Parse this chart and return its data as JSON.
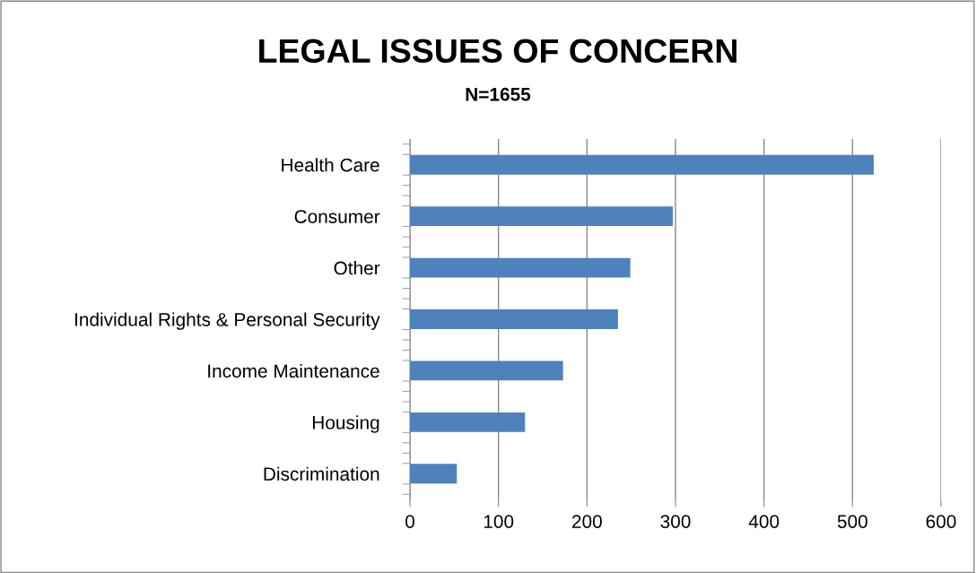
{
  "chart_data": {
    "type": "bar",
    "orientation": "horizontal",
    "title": "LEGAL ISSUES OF CONCERN",
    "subtitle": "N=1655",
    "categories": [
      "Health Care",
      "Consumer",
      "Other",
      "Individual Rights & Personal Security",
      "Income Maintenance",
      "Housing",
      "Discrimination"
    ],
    "values": [
      524,
      297,
      249,
      235,
      173,
      130,
      53
    ],
    "color": "#4f81bd",
    "xlim": [
      0,
      600
    ],
    "xticks": [
      0,
      100,
      200,
      300,
      400,
      500,
      600
    ],
    "grid": "x"
  }
}
